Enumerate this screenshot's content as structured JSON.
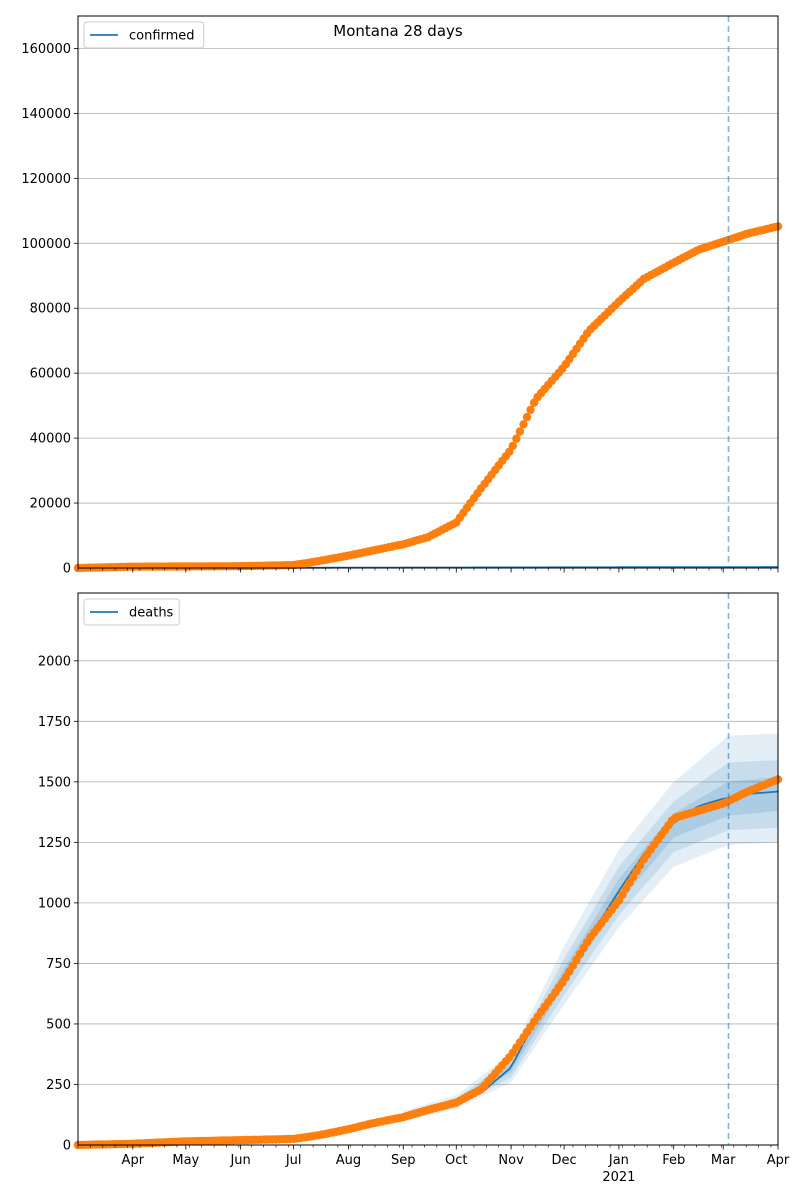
{
  "chart_data": [
    {
      "type": "line",
      "title": "Montana 28 days",
      "xlabel": "",
      "ylabel": "",
      "x_start": "2020-03-01",
      "x_end": "2021-04-01",
      "x_ticks": [
        "Apr",
        "May",
        "Jun",
        "Jul",
        "Aug",
        "Sep",
        "Oct",
        "Nov",
        "Dec",
        "Jan",
        "Feb",
        "Mar",
        "Apr"
      ],
      "x_tick_dates": [
        "2020-04-01",
        "2020-05-01",
        "2020-06-01",
        "2020-07-01",
        "2020-08-01",
        "2020-09-01",
        "2020-10-01",
        "2020-11-01",
        "2020-12-01",
        "2021-01-01",
        "2021-02-01",
        "2021-03-01",
        "2021-04-01"
      ],
      "year_label": "2021",
      "ylim": [
        0,
        170000
      ],
      "y_ticks": [
        "0",
        "20000",
        "40000",
        "60000",
        "80000",
        "100000",
        "120000",
        "140000",
        "160000"
      ],
      "y_tick_values": [
        0,
        20000,
        40000,
        60000,
        80000,
        100000,
        120000,
        140000,
        160000
      ],
      "grid": "horizontal",
      "legend": {
        "placement": "top-left",
        "entries": [
          "confirmed"
        ]
      },
      "vline_date": "2021-03-04",
      "series": [
        {
          "name": "confirmed",
          "kind": "model-line",
          "color": "#1f77b4",
          "x": [
            "2020-03-01",
            "2021-04-01"
          ],
          "y": [
            0,
            300
          ]
        },
        {
          "kind": "observed-points",
          "color": "#ff7f0e",
          "x": [
            "2020-03-01",
            "2020-04-01",
            "2020-05-01",
            "2020-06-01",
            "2020-07-01",
            "2020-07-15",
            "2020-08-01",
            "2020-08-15",
            "2020-09-01",
            "2020-09-15",
            "2020-10-01",
            "2020-10-15",
            "2020-11-01",
            "2020-11-15",
            "2020-12-01",
            "2020-12-15",
            "2021-01-01",
            "2021-01-15",
            "2021-02-01",
            "2021-02-15",
            "2021-03-01",
            "2021-03-15",
            "2021-04-01"
          ],
          "y": [
            0,
            400,
            470,
            550,
            900,
            2100,
            3800,
            5400,
            7300,
            9500,
            14000,
            24500,
            36500,
            52000,
            62000,
            73000,
            82000,
            89000,
            94000,
            98000,
            100500,
            103000,
            105200
          ]
        }
      ]
    },
    {
      "type": "line",
      "title": "",
      "xlabel": "",
      "ylabel": "",
      "x_start": "2020-03-01",
      "x_end": "2021-04-01",
      "x_ticks": [
        "Apr",
        "May",
        "Jun",
        "Jul",
        "Aug",
        "Sep",
        "Oct",
        "Nov",
        "Dec",
        "Jan",
        "Feb",
        "Mar",
        "Apr"
      ],
      "x_tick_dates": [
        "2020-04-01",
        "2020-05-01",
        "2020-06-01",
        "2020-07-01",
        "2020-08-01",
        "2020-09-01",
        "2020-10-01",
        "2020-11-01",
        "2020-12-01",
        "2021-01-01",
        "2021-02-01",
        "2021-03-01",
        "2021-04-01"
      ],
      "year_label": "2021",
      "ylim": [
        0,
        2280
      ],
      "y_ticks": [
        "0",
        "250",
        "500",
        "750",
        "1000",
        "1250",
        "1500",
        "1750",
        "2000"
      ],
      "y_tick_values": [
        0,
        250,
        500,
        750,
        1000,
        1250,
        1500,
        1750,
        2000
      ],
      "grid": "horizontal",
      "legend": {
        "placement": "top-left",
        "entries": [
          "deaths"
        ]
      },
      "vline_date": "2021-03-04",
      "series": [
        {
          "name": "deaths",
          "kind": "model-line",
          "color": "#1f77b4",
          "x": [
            "2020-03-01",
            "2020-04-01",
            "2020-05-01",
            "2020-06-01",
            "2020-07-01",
            "2020-08-01",
            "2020-09-01",
            "2020-10-01",
            "2020-10-15",
            "2020-11-01",
            "2020-11-15",
            "2020-12-01",
            "2020-12-15",
            "2021-01-01",
            "2021-01-15",
            "2021-02-01",
            "2021-02-15",
            "2021-03-01",
            "2021-03-15",
            "2021-04-01"
          ],
          "y": [
            0,
            5,
            15,
            20,
            30,
            70,
            120,
            175,
            215,
            320,
            520,
            700,
            850,
            1050,
            1200,
            1330,
            1400,
            1430,
            1450,
            1460
          ]
        },
        {
          "kind": "band-outer",
          "color": "#1f77b4",
          "x": [
            "2020-09-01",
            "2020-10-01",
            "2020-11-01",
            "2020-12-01",
            "2021-01-01",
            "2021-02-01",
            "2021-03-04",
            "2021-04-01"
          ],
          "y_low": [
            100,
            150,
            260,
            580,
            900,
            1150,
            1240,
            1250
          ],
          "y_high": [
            140,
            205,
            380,
            820,
            1220,
            1500,
            1690,
            1700
          ]
        },
        {
          "kind": "band-middle",
          "color": "#1f77b4",
          "x": [
            "2020-09-01",
            "2020-10-01",
            "2020-11-01",
            "2020-12-01",
            "2021-01-01",
            "2021-02-01",
            "2021-03-04",
            "2021-04-01"
          ],
          "y_low": [
            108,
            160,
            280,
            620,
            950,
            1210,
            1300,
            1310
          ],
          "y_high": [
            132,
            192,
            355,
            770,
            1150,
            1420,
            1580,
            1590
          ]
        },
        {
          "kind": "band-inner",
          "color": "#1f77b4",
          "x": [
            "2020-09-01",
            "2020-10-01",
            "2020-11-01",
            "2020-12-01",
            "2021-01-01",
            "2021-02-01",
            "2021-03-04",
            "2021-04-01"
          ],
          "y_low": [
            114,
            168,
            300,
            660,
            1000,
            1270,
            1360,
            1380
          ],
          "y_high": [
            126,
            184,
            335,
            730,
            1100,
            1370,
            1500,
            1520
          ]
        },
        {
          "kind": "observed-points",
          "color": "#ff7f0e",
          "x": [
            "2020-03-01",
            "2020-04-01",
            "2020-05-01",
            "2020-06-01",
            "2020-07-01",
            "2020-07-15",
            "2020-08-01",
            "2020-08-15",
            "2020-09-01",
            "2020-09-15",
            "2020-10-01",
            "2020-10-15",
            "2020-11-01",
            "2020-11-15",
            "2020-12-01",
            "2020-12-15",
            "2021-01-01",
            "2021-01-15",
            "2021-02-01",
            "2021-02-15",
            "2021-03-01",
            "2021-03-15",
            "2021-04-01"
          ],
          "y": [
            0,
            5,
            15,
            20,
            25,
            40,
            65,
            90,
            115,
            145,
            175,
            230,
            370,
            520,
            680,
            850,
            1010,
            1180,
            1350,
            1380,
            1410,
            1460,
            1510
          ]
        }
      ]
    }
  ]
}
